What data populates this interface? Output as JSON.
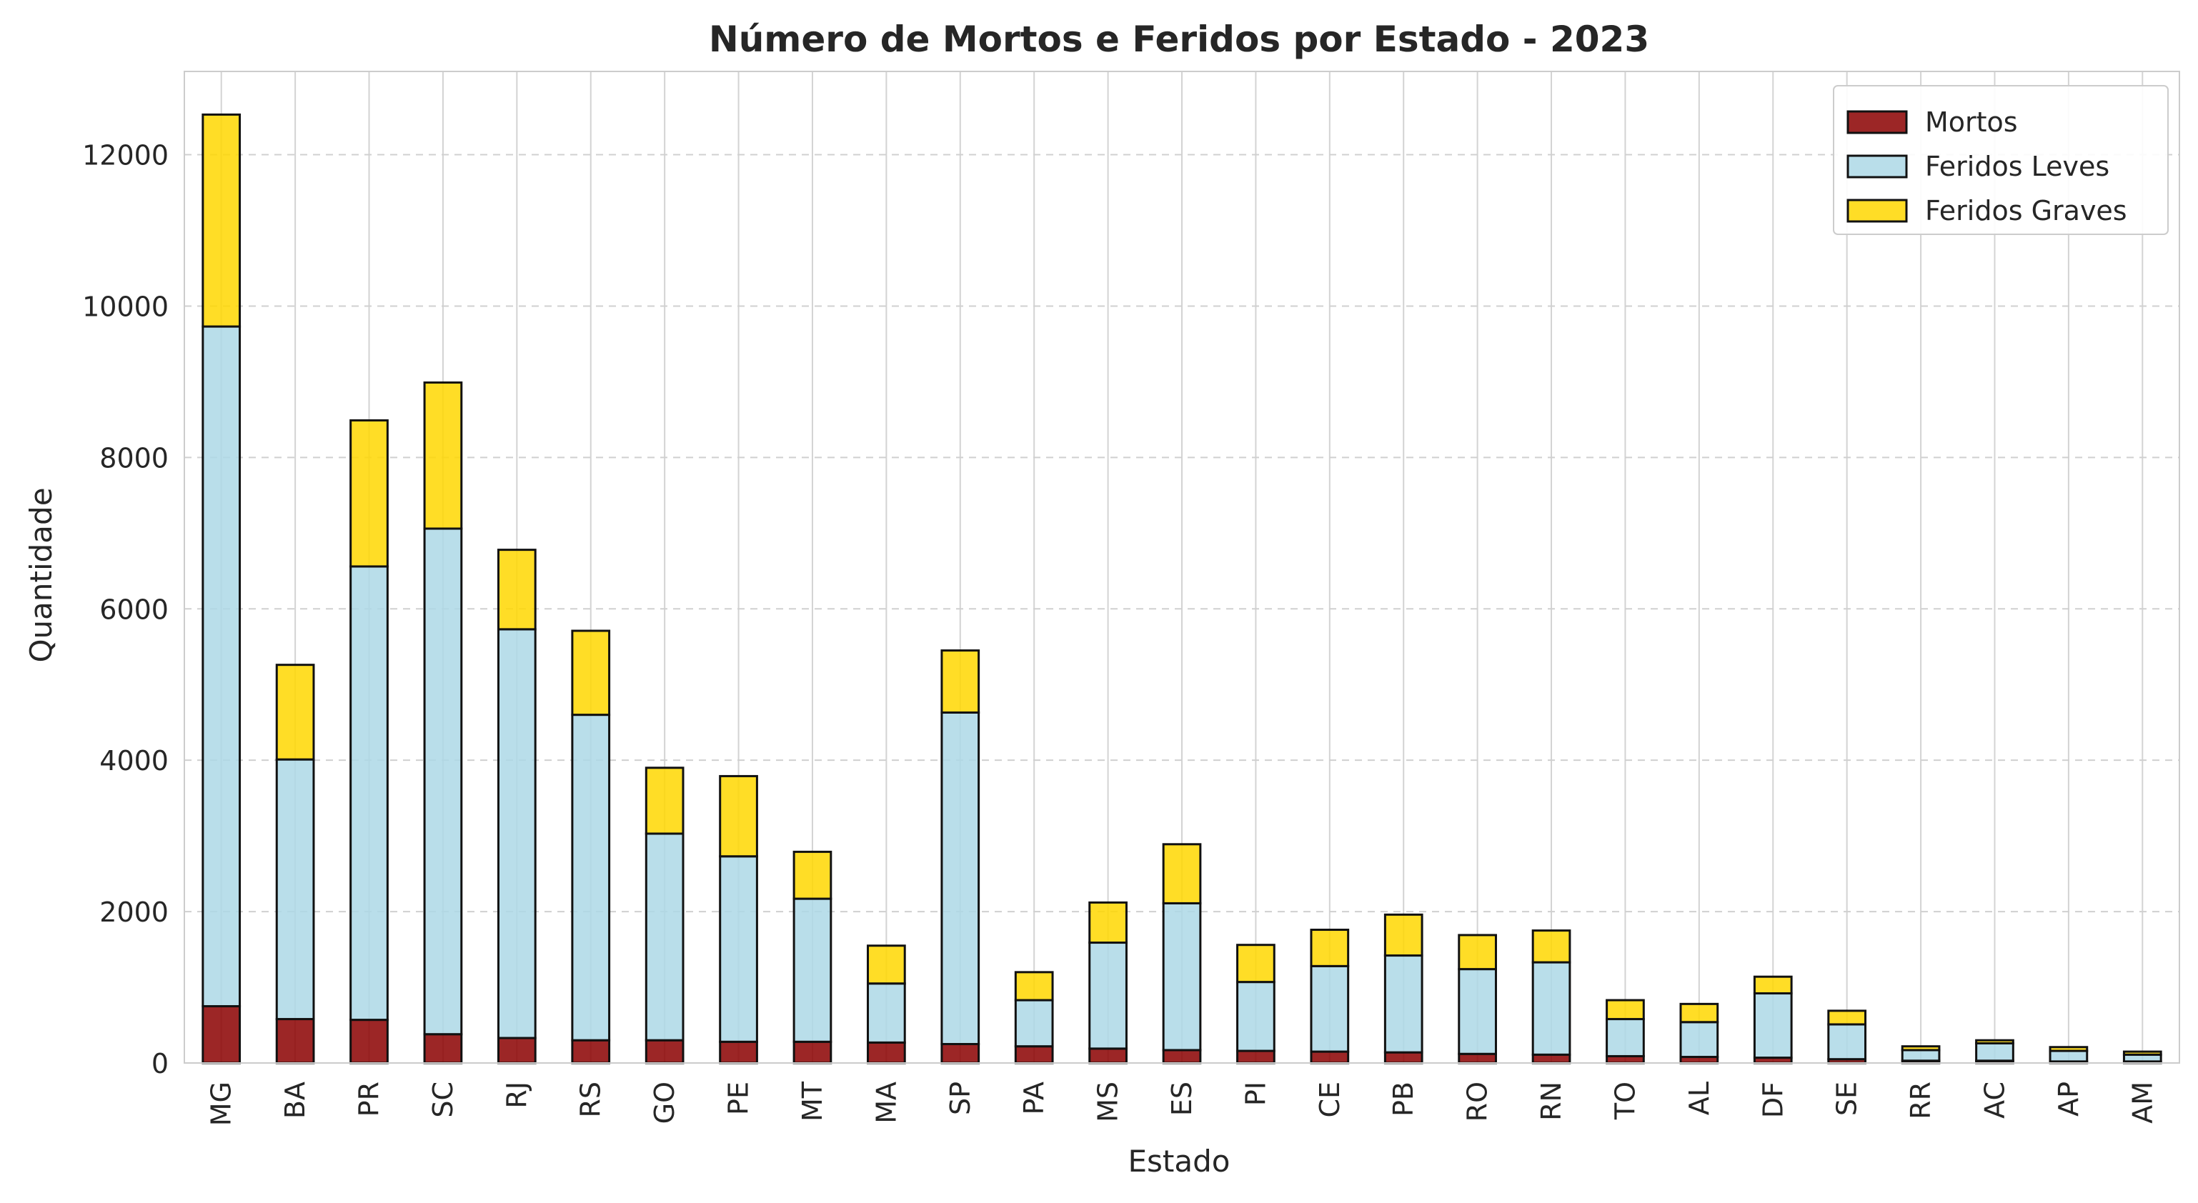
{
  "chart_data": {
    "type": "bar",
    "stacked": true,
    "title": "Número de Mortos e Feridos por Estado - 2023",
    "xlabel": "Estado",
    "ylabel": "Quantidade",
    "ylim": [
      0,
      13100
    ],
    "yticks": [
      0,
      2000,
      4000,
      6000,
      8000,
      10000,
      12000
    ],
    "grid": true,
    "legend_position": "top-right",
    "categories": [
      "MG",
      "BA",
      "PR",
      "SC",
      "RJ",
      "RS",
      "GO",
      "PE",
      "MT",
      "MA",
      "SP",
      "PA",
      "MS",
      "ES",
      "PI",
      "CE",
      "PB",
      "RO",
      "RN",
      "TO",
      "AL",
      "DF",
      "SE",
      "RR",
      "AC",
      "AP",
      "AM"
    ],
    "series": [
      {
        "name": "Mortos",
        "color": "#8b0000",
        "values": [
          750,
          580,
          570,
          380,
          330,
          300,
          300,
          280,
          280,
          270,
          250,
          220,
          190,
          170,
          160,
          150,
          140,
          120,
          110,
          90,
          80,
          70,
          50,
          30,
          30,
          20,
          20
        ]
      },
      {
        "name": "Feridos Leves",
        "color": "#add8e6",
        "values": [
          8980,
          3430,
          5990,
          6680,
          5400,
          4300,
          2730,
          2450,
          1890,
          780,
          4380,
          610,
          1400,
          1940,
          910,
          1130,
          1280,
          1120,
          1220,
          490,
          460,
          850,
          460,
          140,
          230,
          140,
          90
        ]
      },
      {
        "name": "Feridos Graves",
        "color": "#ffd700",
        "values": [
          2800,
          1250,
          1930,
          1930,
          1050,
          1110,
          870,
          1060,
          620,
          500,
          820,
          370,
          530,
          780,
          490,
          480,
          540,
          450,
          420,
          250,
          240,
          220,
          180,
          50,
          40,
          50,
          40
        ]
      }
    ]
  }
}
